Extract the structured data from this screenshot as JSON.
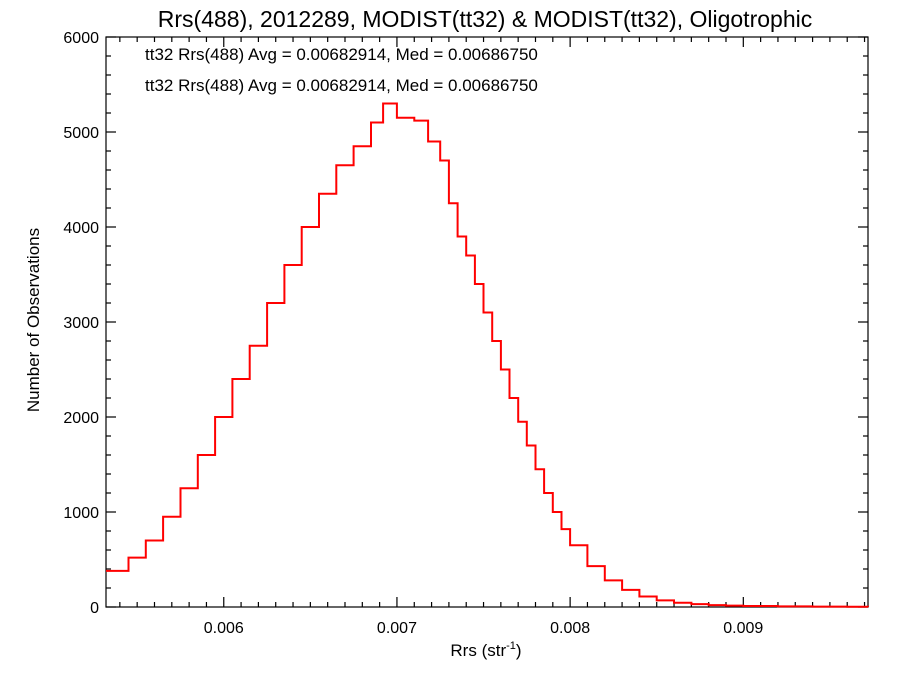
{
  "chart_data": {
    "type": "line",
    "step": true,
    "title": "Rrs(488), 2012289, MODIST(tt32) & MODIST(tt32), Oligotrophic",
    "xlabel": "Rrs (str",
    "xlabel_sup": "-1",
    "xlabel_close": ")",
    "ylabel": "Number of Observations",
    "xlim": [
      0.00532,
      0.00972
    ],
    "ylim": [
      0,
      6000
    ],
    "xticks": [
      0.006,
      0.007,
      0.008,
      0.009
    ],
    "xtick_labels": [
      "0.006",
      "0.007",
      "0.008",
      "0.009"
    ],
    "yticks": [
      0,
      1000,
      2000,
      3000,
      4000,
      5000,
      6000
    ],
    "ytick_labels": [
      "0",
      "1000",
      "2000",
      "3000",
      "4000",
      "5000",
      "6000"
    ],
    "grid": false,
    "annotations": [
      {
        "text": "tt32 Rrs(488) Avg = 0.00682914, Med = 0.00686750",
        "color": "#000000"
      },
      {
        "text": "tt32 Rrs(488) Avg = 0.00682914, Med = 0.00686750",
        "color": "#ff0000"
      }
    ],
    "series": [
      {
        "color": "#ff0000",
        "points": [
          [
            0.00532,
            380
          ],
          [
            0.00545,
            520
          ],
          [
            0.00555,
            700
          ],
          [
            0.00565,
            950
          ],
          [
            0.00575,
            1250
          ],
          [
            0.00585,
            1600
          ],
          [
            0.00595,
            2000
          ],
          [
            0.00605,
            2400
          ],
          [
            0.00615,
            2750
          ],
          [
            0.00625,
            3200
          ],
          [
            0.00635,
            3600
          ],
          [
            0.00645,
            4000
          ],
          [
            0.00655,
            4350
          ],
          [
            0.00665,
            4650
          ],
          [
            0.00675,
            4850
          ],
          [
            0.00685,
            5100
          ],
          [
            0.00692,
            5300
          ],
          [
            0.007,
            5150
          ],
          [
            0.0071,
            5120
          ],
          [
            0.00718,
            4900
          ],
          [
            0.00725,
            4700
          ],
          [
            0.0073,
            4250
          ],
          [
            0.00735,
            3900
          ],
          [
            0.0074,
            3700
          ],
          [
            0.00745,
            3400
          ],
          [
            0.0075,
            3100
          ],
          [
            0.00755,
            2800
          ],
          [
            0.0076,
            2500
          ],
          [
            0.00765,
            2200
          ],
          [
            0.0077,
            1950
          ],
          [
            0.00775,
            1700
          ],
          [
            0.0078,
            1450
          ],
          [
            0.00785,
            1200
          ],
          [
            0.0079,
            1000
          ],
          [
            0.00795,
            820
          ],
          [
            0.008,
            650
          ],
          [
            0.0081,
            430
          ],
          [
            0.0082,
            280
          ],
          [
            0.0083,
            180
          ],
          [
            0.0084,
            110
          ],
          [
            0.0085,
            70
          ],
          [
            0.0086,
            45
          ],
          [
            0.0087,
            30
          ],
          [
            0.0088,
            20
          ],
          [
            0.0089,
            15
          ],
          [
            0.009,
            10
          ],
          [
            0.0092,
            6
          ],
          [
            0.0094,
            4
          ],
          [
            0.0096,
            2
          ],
          [
            0.00972,
            1
          ]
        ]
      }
    ]
  }
}
